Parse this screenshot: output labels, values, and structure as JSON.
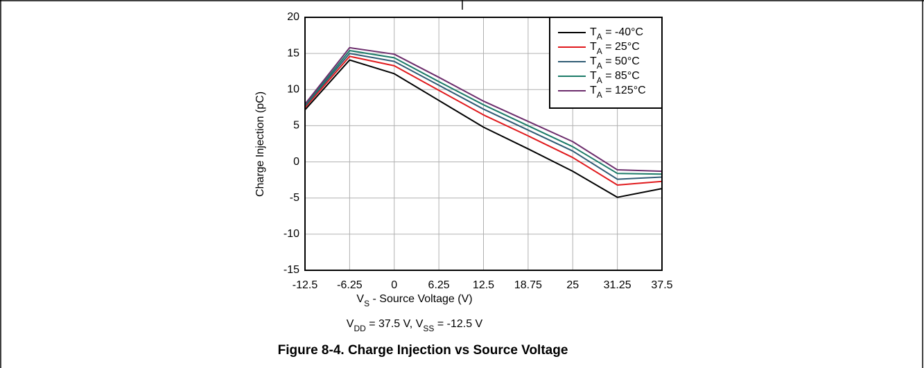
{
  "chart_data": {
    "type": "line",
    "caption": "Figure 8-4. Charge Injection vs Source Voltage",
    "note": "VDD = 37.5 V, VSS = -12.5 V",
    "xlabel": "VS - Source Voltage (V)",
    "ylabel": "Charge Injection (pC)",
    "x": [
      -12.5,
      -6.25,
      0,
      6.25,
      12.5,
      18.75,
      25,
      31.25,
      37.5
    ],
    "series": [
      {
        "name": "TA = -40°C",
        "color": "#000000",
        "values": [
          7.2,
          14.1,
          12.2,
          8.5,
          4.8,
          1.8,
          -1.3,
          -4.9,
          -3.7
        ]
      },
      {
        "name": "TA = 25°C",
        "color": "#e0191c",
        "values": [
          7.5,
          14.6,
          13.3,
          9.9,
          6.5,
          3.6,
          0.6,
          -3.2,
          -2.7
        ]
      },
      {
        "name": "TA = 50°C",
        "color": "#2f5b74",
        "values": [
          7.7,
          15.0,
          13.9,
          10.6,
          7.3,
          4.4,
          1.5,
          -2.4,
          -2.1
        ]
      },
      {
        "name": "TA = 85°C",
        "color": "#1b7a68",
        "values": [
          7.8,
          15.4,
          14.4,
          11.1,
          7.9,
          5.0,
          2.1,
          -1.6,
          -1.7
        ]
      },
      {
        "name": "TA = 125°C",
        "color": "#6c2d6c",
        "values": [
          8.0,
          15.8,
          14.9,
          11.7,
          8.4,
          5.6,
          2.8,
          -1.1,
          -1.3
        ]
      }
    ],
    "xlim": [
      -12.5,
      37.5
    ],
    "xticks": [
      -12.5,
      -6.25,
      0,
      6.25,
      12.5,
      18.75,
      25,
      31.25,
      37.5
    ],
    "ylim": [
      -15,
      20
    ],
    "yticks": [
      -15,
      -10,
      -5,
      0,
      5,
      10,
      15,
      20
    ],
    "grid": true,
    "legend": "upper right"
  }
}
